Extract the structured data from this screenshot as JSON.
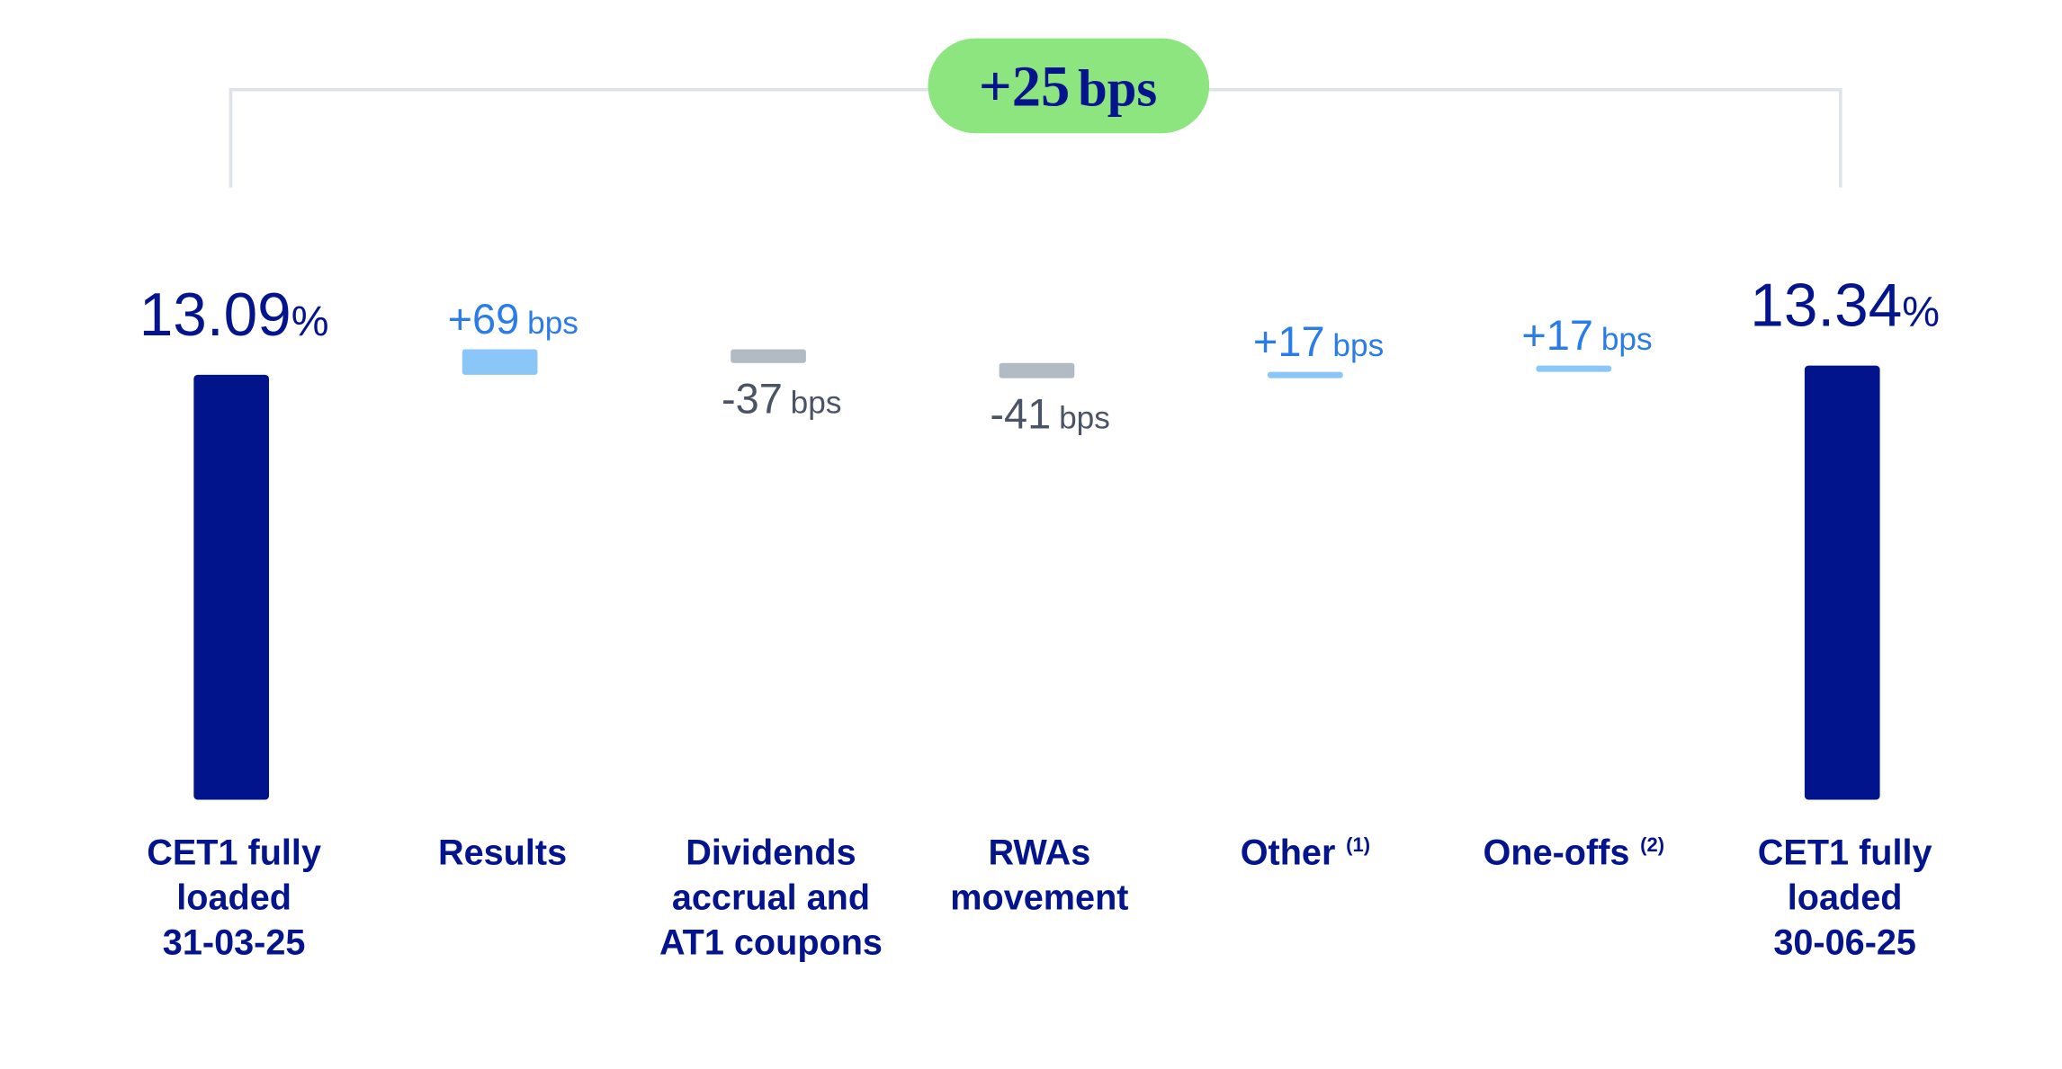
{
  "chart_data": {
    "type": "waterfall",
    "title": "",
    "unit_total": "%",
    "unit_delta": "bps",
    "summary_badge": {
      "value": "+25",
      "unit": "bps"
    },
    "categories": [
      {
        "label": [
          "CET1 fully",
          "loaded",
          "31-03-25"
        ],
        "kind": "total",
        "value": 13.09,
        "text": "13.09",
        "suffix": "%"
      },
      {
        "label": [
          "Results"
        ],
        "kind": "delta",
        "value": 69,
        "text": "+69",
        "suffix": "bps"
      },
      {
        "label": [
          "Dividends",
          "accrual and",
          "AT1 coupons"
        ],
        "kind": "delta",
        "value": -37,
        "text": "-37",
        "suffix": "bps"
      },
      {
        "label": [
          "RWAs",
          "movement"
        ],
        "kind": "delta",
        "value": -41,
        "text": "-41",
        "suffix": "bps"
      },
      {
        "label": [
          "Other"
        ],
        "footnote": "(1)",
        "kind": "delta",
        "value": 17,
        "text": "+17",
        "suffix": "bps"
      },
      {
        "label": [
          "One-offs"
        ],
        "footnote": "(2)",
        "kind": "delta",
        "value": 17,
        "text": "+17",
        "suffix": "bps"
      },
      {
        "label": [
          "CET1 fully",
          "loaded",
          "30-06-25"
        ],
        "kind": "total",
        "value": 13.34,
        "text": "13.34",
        "suffix": "%"
      }
    ],
    "colors": {
      "total": "#02148c",
      "positive": "#8ac7f8",
      "negative": "#b2bac4",
      "positive_text": "#2a7ce8",
      "negative_text": "#4a5466",
      "badge": "#8ce57e",
      "bracket": "#dfe4ea"
    }
  }
}
